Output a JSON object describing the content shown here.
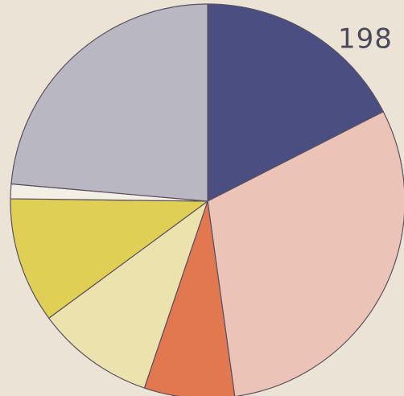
{
  "chart_data": {
    "type": "pie",
    "title": "198",
    "values": [
      17.5,
      30.3,
      7.4,
      9.7,
      10.3,
      1.2,
      23.6
    ],
    "colors": [
      "#4b4e80",
      "#ecc4b7",
      "#e2784f",
      "#ece2ad",
      "#e0cf55",
      "#f3efe5",
      "#b9b8c2"
    ]
  }
}
